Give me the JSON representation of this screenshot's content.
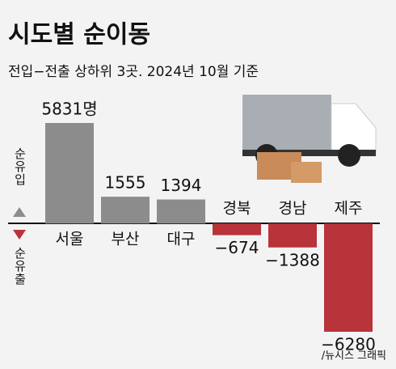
{
  "chart_data": {
    "type": "bar",
    "title": "시도별 순이동",
    "subtitle": "전입−전출 상하위 3곳. 2024년 10월 기준",
    "categories": [
      "서울",
      "부산",
      "대구",
      "경북",
      "경남",
      "제주"
    ],
    "values": [
      5831,
      1555,
      1394,
      -674,
      -1388,
      -6280
    ],
    "value_labels": [
      "5831명",
      "1555",
      "1394",
      "−674",
      "−1388",
      "−6280"
    ],
    "color": "#8c8c8c",
    "negative_color": "#b8333a",
    "inflow_label": "순유입",
    "outflow_label": "순유출",
    "source": "/뉴시스 그래픽"
  }
}
